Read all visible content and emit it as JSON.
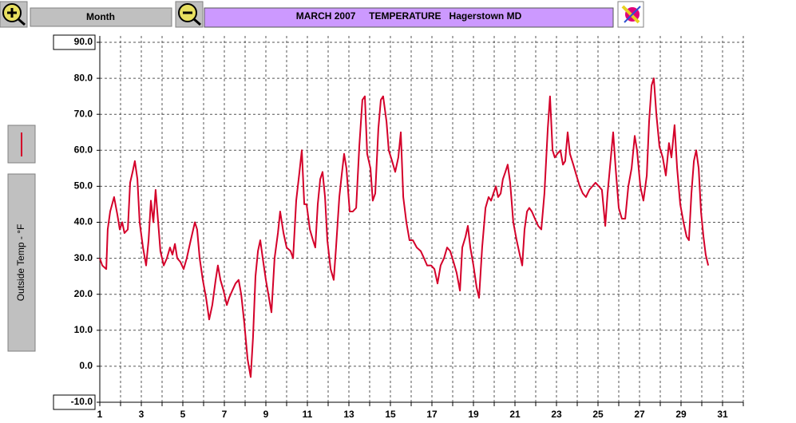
{
  "toolbar": {
    "range_button": "Month",
    "title": "MARCH 2007     TEMPERATURE   Hagerstown MD"
  },
  "chart_data": {
    "type": "line",
    "y_label": "Outside Temp - °F",
    "color": "#d4002a",
    "grid": true,
    "xlim": [
      1,
      32
    ],
    "xticks": [
      1,
      3,
      5,
      7,
      9,
      11,
      13,
      15,
      17,
      19,
      21,
      23,
      25,
      27,
      29,
      31
    ],
    "xminor_ticks": [
      2,
      4,
      6,
      8,
      10,
      12,
      14,
      16,
      18,
      20,
      22,
      24,
      26,
      28,
      30,
      32
    ],
    "ylim": [
      -10,
      90
    ],
    "yticks": [
      {
        "value": -10,
        "label": "-10.0"
      },
      {
        "value": 0,
        "label": "0.0"
      },
      {
        "value": 10,
        "label": "10.0"
      },
      {
        "value": 20,
        "label": "20.0"
      },
      {
        "value": 30,
        "label": "30.0"
      },
      {
        "value": 40,
        "label": "40.0"
      },
      {
        "value": 50,
        "label": "50.0"
      },
      {
        "value": 60,
        "label": "60.0"
      },
      {
        "value": 70,
        "label": "70.0"
      },
      {
        "value": 80,
        "label": "80.0"
      },
      {
        "value": 90,
        "label": "90.0"
      }
    ],
    "x": [
      1.0,
      1.12,
      1.31,
      1.38,
      1.5,
      1.69,
      1.85,
      1.96,
      2.08,
      2.19,
      2.35,
      2.46,
      2.58,
      2.69,
      2.81,
      2.92,
      3.08,
      3.23,
      3.35,
      3.46,
      3.58,
      3.69,
      3.81,
      3.92,
      4.08,
      4.23,
      4.38,
      4.5,
      4.62,
      4.73,
      4.88,
      5.04,
      5.19,
      5.38,
      5.58,
      5.69,
      5.81,
      5.96,
      6.12,
      6.27,
      6.42,
      6.58,
      6.69,
      6.81,
      6.96,
      7.12,
      7.23,
      7.38,
      7.54,
      7.69,
      7.81,
      7.96,
      8.12,
      8.27,
      8.38,
      8.5,
      8.62,
      8.73,
      8.85,
      9.0,
      9.15,
      9.27,
      9.42,
      9.58,
      9.69,
      9.85,
      10.0,
      10.19,
      10.31,
      10.46,
      10.62,
      10.73,
      10.85,
      10.96,
      11.12,
      11.27,
      11.38,
      11.5,
      11.62,
      11.73,
      11.85,
      11.96,
      12.12,
      12.27,
      12.38,
      12.54,
      12.65,
      12.77,
      12.88,
      13.04,
      13.19,
      13.35,
      13.5,
      13.65,
      13.77,
      13.88,
      14.04,
      14.15,
      14.27,
      14.42,
      14.54,
      14.65,
      14.81,
      14.92,
      15.08,
      15.23,
      15.38,
      15.5,
      15.62,
      15.77,
      15.92,
      16.08,
      16.27,
      16.46,
      16.62,
      16.77,
      16.96,
      17.12,
      17.27,
      17.42,
      17.58,
      17.73,
      17.88,
      18.04,
      18.19,
      18.35,
      18.46,
      18.62,
      18.73,
      18.85,
      19.0,
      19.15,
      19.27,
      19.42,
      19.58,
      19.73,
      19.85,
      19.96,
      20.08,
      20.19,
      20.31,
      20.42,
      20.54,
      20.65,
      20.77,
      20.92,
      21.08,
      21.23,
      21.35,
      21.46,
      21.58,
      21.69,
      21.81,
      21.96,
      22.12,
      22.27,
      22.42,
      22.58,
      22.69,
      22.81,
      22.92,
      23.04,
      23.19,
      23.31,
      23.42,
      23.54,
      23.65,
      23.81,
      23.96,
      24.12,
      24.27,
      24.42,
      24.58,
      24.73,
      24.88,
      25.04,
      25.19,
      25.35,
      25.46,
      25.62,
      25.73,
      25.85,
      26.0,
      26.15,
      26.31,
      26.46,
      26.62,
      26.77,
      26.88,
      27.04,
      27.19,
      27.35,
      27.46,
      27.58,
      27.69,
      27.81,
      27.96,
      28.12,
      28.27,
      28.42,
      28.54,
      28.69,
      28.81,
      28.96,
      29.12,
      29.27,
      29.38,
      29.5,
      29.62,
      29.73,
      29.85,
      29.96,
      30.08,
      30.19,
      30.31
    ],
    "values": [
      30,
      28,
      27,
      38,
      43,
      47,
      42,
      38,
      40,
      37,
      38,
      51,
      54,
      57,
      52,
      40,
      33,
      28,
      35,
      46,
      40,
      49,
      40,
      32,
      28,
      30,
      33,
      31,
      34,
      30,
      29,
      27,
      30,
      35,
      40,
      38,
      30,
      24,
      19,
      13,
      17,
      24,
      28,
      24,
      21,
      17,
      19,
      21,
      23,
      24,
      20,
      12,
      2,
      -3,
      8,
      25,
      32,
      35,
      30,
      24,
      19,
      15,
      30,
      37,
      43,
      37,
      33,
      32,
      30,
      46,
      54,
      60,
      45,
      45,
      38,
      35,
      33,
      45,
      52,
      54,
      47,
      35,
      27,
      24,
      33,
      47,
      53,
      59,
      55,
      43,
      43,
      44,
      61,
      74,
      75,
      59,
      55,
      46,
      48,
      66,
      74,
      75,
      68,
      60,
      57,
      54,
      58,
      65,
      47,
      40,
      35,
      35,
      33,
      32,
      30,
      28,
      28,
      27,
      23,
      28,
      30,
      33,
      32,
      29,
      26,
      21,
      33,
      36,
      39,
      33,
      28,
      22,
      19,
      33,
      44,
      47,
      46,
      48,
      50,
      47,
      48,
      52,
      54,
      56,
      51,
      40,
      35,
      31,
      28,
      38,
      43,
      44,
      43,
      41,
      39,
      38,
      48,
      66,
      75,
      60,
      58,
      59,
      60,
      56,
      57,
      65,
      59,
      56,
      53,
      50,
      48,
      47,
      49,
      50,
      51,
      50,
      49,
      39,
      48,
      58,
      65,
      55,
      44,
      41,
      41,
      50,
      55,
      64,
      60,
      50,
      46,
      53,
      68,
      78,
      80,
      70,
      61,
      58,
      53,
      62,
      58,
      67,
      55,
      45,
      40,
      36,
      35,
      48,
      57,
      60,
      55,
      43,
      36,
      31,
      28
    ]
  }
}
